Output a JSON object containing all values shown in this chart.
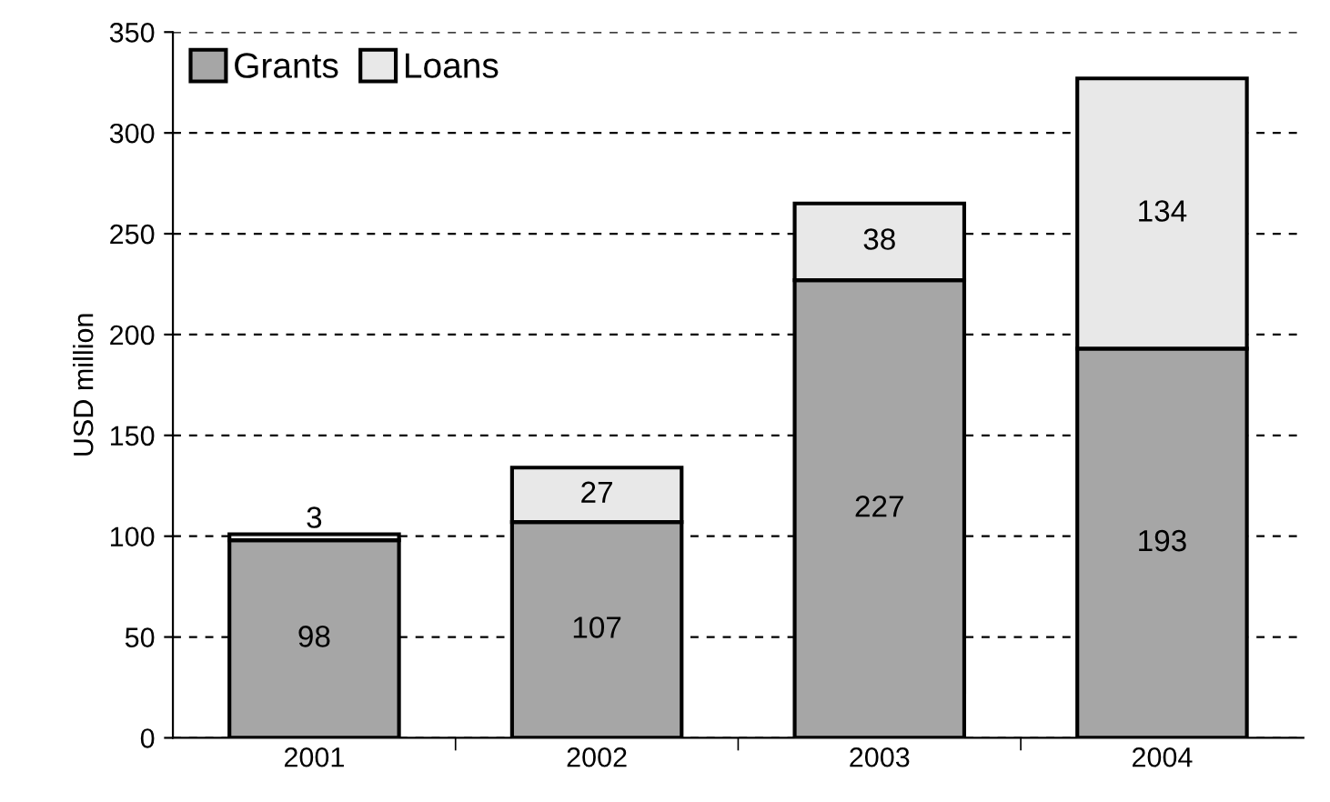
{
  "chart_data": {
    "type": "bar",
    "stacked": true,
    "ylabel": "USD million",
    "categories": [
      "2001",
      "2002",
      "2003",
      "2004"
    ],
    "series": [
      {
        "name": "Grants",
        "color": "#a6a6a6",
        "values": [
          98,
          107,
          227,
          193
        ]
      },
      {
        "name": "Loans",
        "color": "#e8e8e8",
        "values": [
          3,
          27,
          38,
          134
        ]
      }
    ],
    "ylim": [
      0,
      350
    ],
    "yticks": [
      0,
      50,
      100,
      150,
      200,
      250,
      300,
      350
    ],
    "grid": "y",
    "legend": "top left",
    "data_labels": true
  }
}
